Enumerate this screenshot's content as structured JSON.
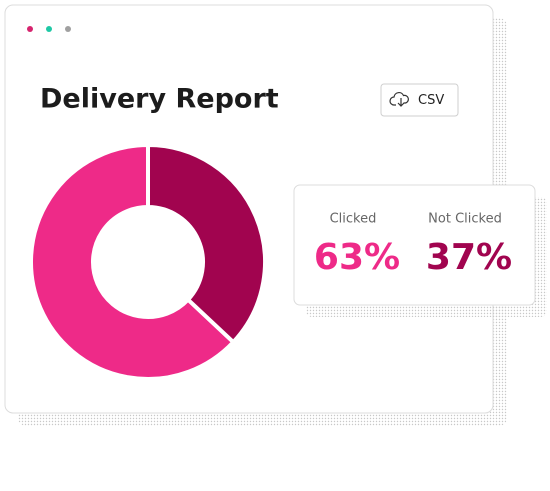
{
  "window": {
    "title": "Delivery Report",
    "button": "CSV"
  },
  "chart_data": {
    "type": "pie",
    "categories": [
      "Clicked",
      "Not Clicked"
    ],
    "values": [
      63,
      37
    ],
    "value_labels": [
      "63%",
      "37%"
    ],
    "colors": [
      "#ee2a88",
      "#a1044f"
    ]
  }
}
